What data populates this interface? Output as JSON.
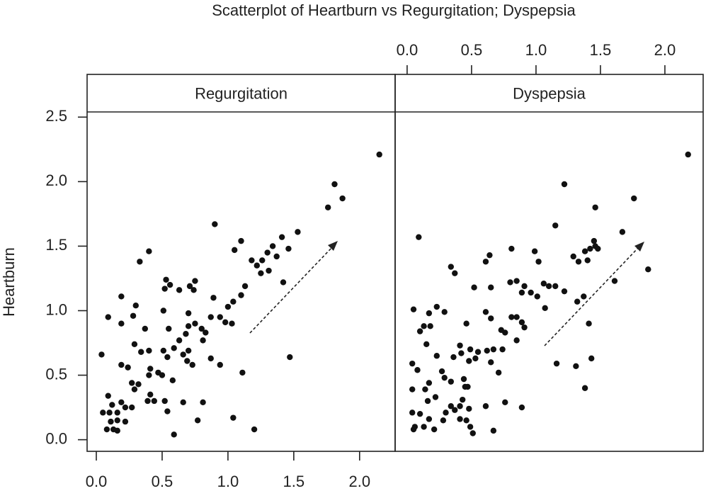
{
  "chart_data": {
    "type": "scatter",
    "title": "Scatterplot of Heartburn vs Regurgitation; Dyspepsia",
    "ylabel": "Heartburn",
    "ylim": [
      -0.09,
      2.54
    ],
    "yticks": [
      {
        "value": 0,
        "label": "0.0"
      },
      0.5,
      {
        "value": 1,
        "label": "1.0"
      },
      1.5,
      {
        "value": 2,
        "label": "2.0"
      },
      2.5
    ],
    "color": "#111111",
    "panels": [
      {
        "name": "Regurgitation",
        "xaxis_side": "bottom",
        "xlim": [
          -0.07,
          2.27
        ],
        "xticks": [
          {
            "value": 0,
            "label": "0.0"
          },
          0.5,
          {
            "value": 1,
            "label": "1.0"
          },
          1.5,
          {
            "value": 2,
            "label": "2.0"
          }
        ],
        "x": [
          2.15,
          1.81,
          1.87,
          1.76,
          0.9,
          1.53,
          1.41,
          1.1,
          1.34,
          1.05,
          1.3,
          1.46,
          0.4,
          1.18,
          1.26,
          1.22,
          0.33,
          1.37,
          1.25,
          1.31,
          1.42,
          0.53,
          0.56,
          0.71,
          0.75,
          0.63,
          0.52,
          0.74,
          1.13,
          1.1,
          0.19,
          0.89,
          1.04,
          1.0,
          0.3,
          0.09,
          0.19,
          0.51,
          0.28,
          0.7,
          0.87,
          0.94,
          0.98,
          1.03,
          0.7,
          0.75,
          0.8,
          0.83,
          0.37,
          0.55,
          0.68,
          0.63,
          0.81,
          0.29,
          0.04,
          0.4,
          0.51,
          0.59,
          0.54,
          0.66,
          0.7,
          0.34,
          0.69,
          0.73,
          0.87,
          0.94,
          1.47,
          0.19,
          0.24,
          0.41,
          0.47,
          0.5,
          0.4,
          1.11,
          0.27,
          0.32,
          0.29,
          0.58,
          0.09,
          0.41,
          0.44,
          0.39,
          0.52,
          0.66,
          0.81,
          0.19,
          0.22,
          0.27,
          0.12,
          0.05,
          0.1,
          0.16,
          0.54,
          0.77,
          0.16,
          0.22,
          0.11,
          0.08,
          0.13,
          0.16,
          1.04,
          1.2,
          0.59
        ],
        "y": [
          2.21,
          1.98,
          1.87,
          1.8,
          1.67,
          1.61,
          1.57,
          1.54,
          1.5,
          1.47,
          1.45,
          1.48,
          1.46,
          1.39,
          1.39,
          1.35,
          1.38,
          1.42,
          1.29,
          1.31,
          1.22,
          1.24,
          1.2,
          1.19,
          1.23,
          1.16,
          1.17,
          1.16,
          1.19,
          1.12,
          1.11,
          1.1,
          1.07,
          1.03,
          1.04,
          0.95,
          0.9,
          1.0,
          0.96,
          0.98,
          0.95,
          0.95,
          0.91,
          0.9,
          0.88,
          0.9,
          0.86,
          0.83,
          0.86,
          0.86,
          0.82,
          0.77,
          0.77,
          0.74,
          0.66,
          0.69,
          0.69,
          0.71,
          0.64,
          0.66,
          0.69,
          0.68,
          0.61,
          0.58,
          0.63,
          0.58,
          0.64,
          0.58,
          0.56,
          0.55,
          0.52,
          0.5,
          0.5,
          0.52,
          0.44,
          0.43,
          0.39,
          0.46,
          0.34,
          0.35,
          0.3,
          0.3,
          0.3,
          0.29,
          0.29,
          0.29,
          0.25,
          0.25,
          0.27,
          0.21,
          0.21,
          0.21,
          0.22,
          0.15,
          0.15,
          0.14,
          0.14,
          0.08,
          0.08,
          0.07,
          0.17,
          0.08,
          0.04
        ]
      },
      {
        "name": "Dyspepsia",
        "xaxis_side": "top",
        "xlim": [
          -0.093,
          2.297
        ],
        "xticks": [
          {
            "value": 0,
            "label": "0.0"
          },
          0.5,
          {
            "value": 1,
            "label": "1.0"
          },
          1.5,
          {
            "value": 2,
            "label": "2.0"
          }
        ],
        "x": [
          2.18,
          1.22,
          1.76,
          1.46,
          1.15,
          1.67,
          0.09,
          1.45,
          1.46,
          1.42,
          1.48,
          1.38,
          0.99,
          0.81,
          0.64,
          1.29,
          0.61,
          1.33,
          1.4,
          1.02,
          0.34,
          0.37,
          1.87,
          0.85,
          0.8,
          0.91,
          1.06,
          1.1,
          1.15,
          0.52,
          0.65,
          0.89,
          0.96,
          1.01,
          1.22,
          1.61,
          1.37,
          1.32,
          0.05,
          0.23,
          0.17,
          0.29,
          0.61,
          1.07,
          0.13,
          0.1,
          0.18,
          0.46,
          0.65,
          0.81,
          0.85,
          0.89,
          0.91,
          0.73,
          0.76,
          1.41,
          0.15,
          0.41,
          0.49,
          0.55,
          0.62,
          0.67,
          0.74,
          0.85,
          0.42,
          0.36,
          0.23,
          0.48,
          0.53,
          0.65,
          0.71,
          0.04,
          0.08,
          0.27,
          1.16,
          1.43,
          1.31,
          0.29,
          0.44,
          0.34,
          0.17,
          0.14,
          0.04,
          0.45,
          0.47,
          1.38,
          0.22,
          0.16,
          0.34,
          0.41,
          0.43,
          0.48,
          0.61,
          0.76,
          0.89,
          0.04,
          0.1,
          0.3,
          0.37,
          0.17,
          0.28,
          0.41,
          0.46,
          0.06,
          0.13,
          0.05,
          0.21,
          0.49,
          0.51,
          0.67
        ],
        "y": [
          2.21,
          1.98,
          1.87,
          1.8,
          1.66,
          1.61,
          1.57,
          1.54,
          1.5,
          1.48,
          1.48,
          1.46,
          1.46,
          1.48,
          1.43,
          1.42,
          1.38,
          1.38,
          1.39,
          1.38,
          1.34,
          1.29,
          1.32,
          1.23,
          1.22,
          1.19,
          1.21,
          1.19,
          1.19,
          1.18,
          1.18,
          1.14,
          1.14,
          1.11,
          1.15,
          1.23,
          1.11,
          1.07,
          1.01,
          1.03,
          0.98,
          0.99,
          0.99,
          1.02,
          0.88,
          0.84,
          0.88,
          0.9,
          0.94,
          0.95,
          0.95,
          0.91,
          0.87,
          0.85,
          0.83,
          0.9,
          0.74,
          0.73,
          0.7,
          0.68,
          0.69,
          0.7,
          0.7,
          0.77,
          0.67,
          0.64,
          0.65,
          0.61,
          0.63,
          0.6,
          0.52,
          0.59,
          0.54,
          0.53,
          0.59,
          0.63,
          0.57,
          0.48,
          0.47,
          0.45,
          0.44,
          0.39,
          0.39,
          0.41,
          0.41,
          0.4,
          0.33,
          0.3,
          0.26,
          0.26,
          0.31,
          0.24,
          0.26,
          0.29,
          0.25,
          0.21,
          0.2,
          0.21,
          0.23,
          0.16,
          0.15,
          0.16,
          0.15,
          0.1,
          0.1,
          0.08,
          0.08,
          0.1,
          0.05,
          0.07
        ]
      }
    ]
  }
}
